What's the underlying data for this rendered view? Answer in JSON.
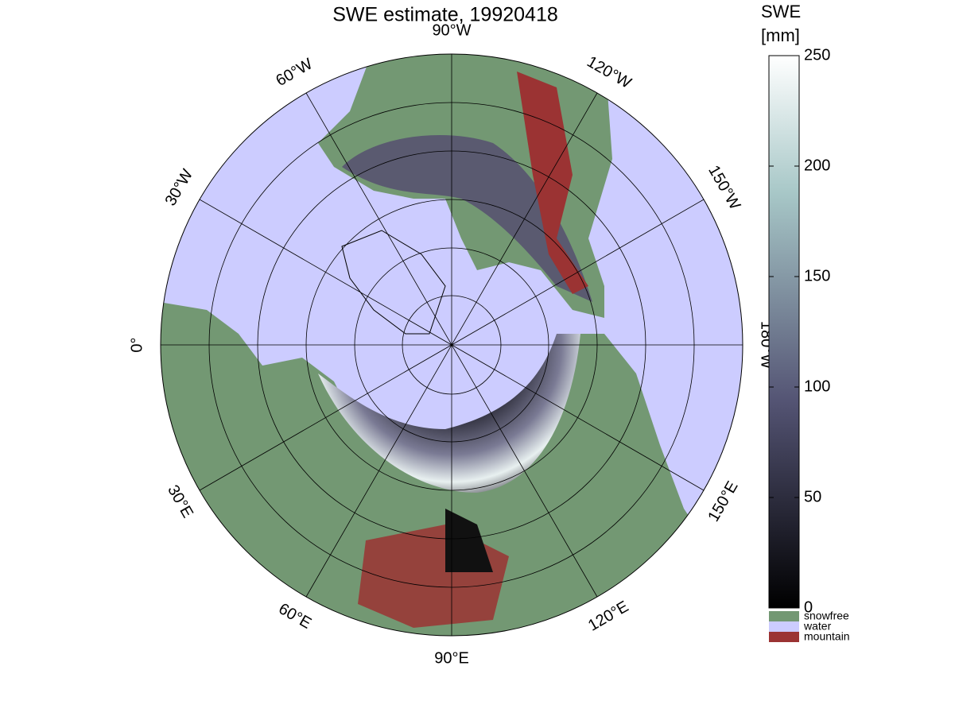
{
  "title": "SWE estimate, 19920418",
  "map": {
    "longitude_labels": [
      "90°W",
      "120°W",
      "150°W",
      "180°W",
      "150°E",
      "120°E",
      "90°E",
      "60°E",
      "30°E",
      "0°",
      "30°W",
      "60°W"
    ]
  },
  "colorbar": {
    "title": [
      "SWE",
      "[mm]"
    ],
    "lim": [
      0,
      250
    ],
    "ticks": [
      0,
      50,
      100,
      150,
      200,
      250
    ]
  },
  "legend": [
    {
      "name": "snowfree",
      "color": "#739873"
    },
    {
      "name": "water",
      "color": "#ccccff"
    },
    {
      "name": "mountain",
      "color": "#9b3333"
    }
  ]
}
